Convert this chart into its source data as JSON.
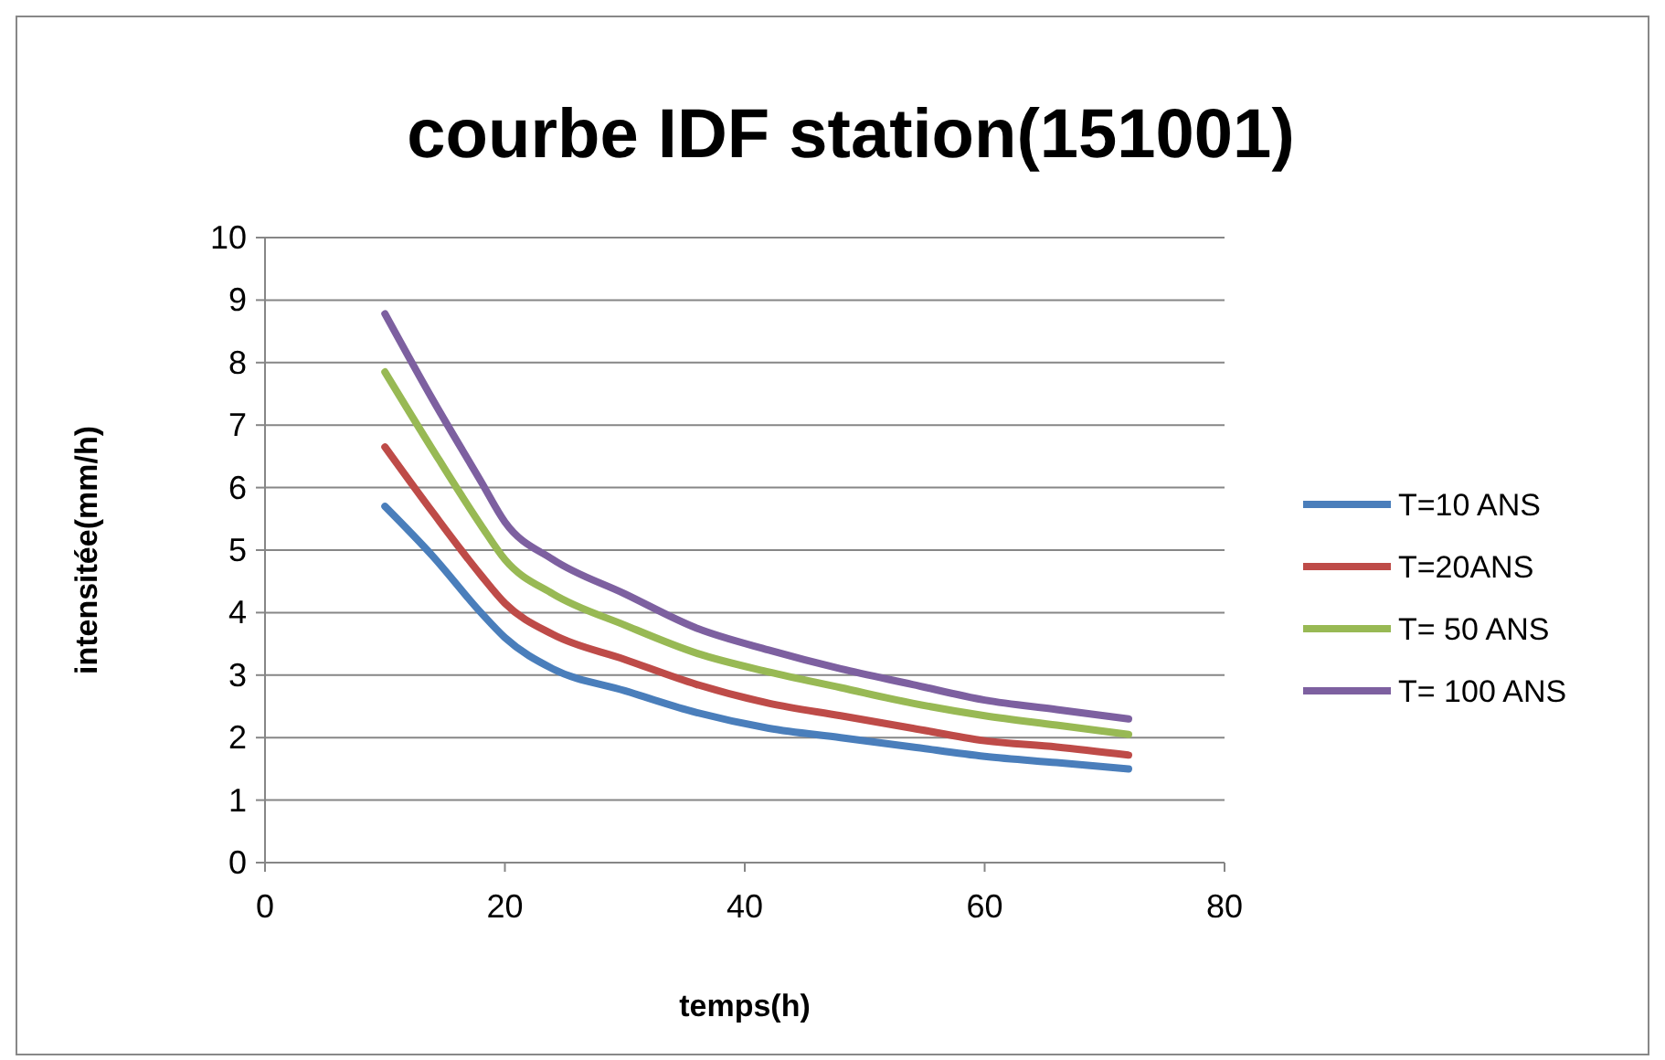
{
  "chart_data": {
    "type": "line",
    "title": "courbe IDF station(151001)",
    "xlabel": "temps(h)",
    "ylabel": "intensitée(mm/h)",
    "x": [
      10,
      14,
      18,
      20,
      24,
      30,
      36,
      42,
      48,
      54,
      60,
      66,
      72
    ],
    "series": [
      {
        "name": "T=10 ANS",
        "color": "#4a7ebb",
        "values": [
          5.7,
          4.9,
          4.0,
          3.6,
          3.1,
          2.75,
          2.4,
          2.15,
          2.0,
          1.85,
          1.7,
          1.6,
          1.5
        ]
      },
      {
        "name": "T=20ANS",
        "color": "#be4b48",
        "values": [
          6.65,
          5.6,
          4.6,
          4.15,
          3.65,
          3.25,
          2.85,
          2.55,
          2.35,
          2.15,
          1.95,
          1.85,
          1.72
        ]
      },
      {
        "name": "T= 50 ANS",
        "color": "#98b954",
        "values": [
          7.85,
          6.6,
          5.4,
          4.85,
          4.3,
          3.8,
          3.35,
          3.05,
          2.8,
          2.55,
          2.35,
          2.2,
          2.05
        ]
      },
      {
        "name": "T= 100 ANS",
        "color": "#7d60a0",
        "values": [
          8.78,
          7.4,
          6.1,
          5.45,
          4.85,
          4.3,
          3.75,
          3.4,
          3.1,
          2.85,
          2.6,
          2.45,
          2.3
        ]
      }
    ],
    "xlim": [
      0,
      80
    ],
    "xticks": [
      0,
      20,
      40,
      60,
      80
    ],
    "ylim": [
      0,
      10
    ],
    "yticks": [
      0,
      1,
      2,
      3,
      4,
      5,
      6,
      7,
      8,
      9,
      10
    ],
    "grid": "y",
    "legend": "right",
    "marker": "none",
    "line_style": "solid"
  }
}
